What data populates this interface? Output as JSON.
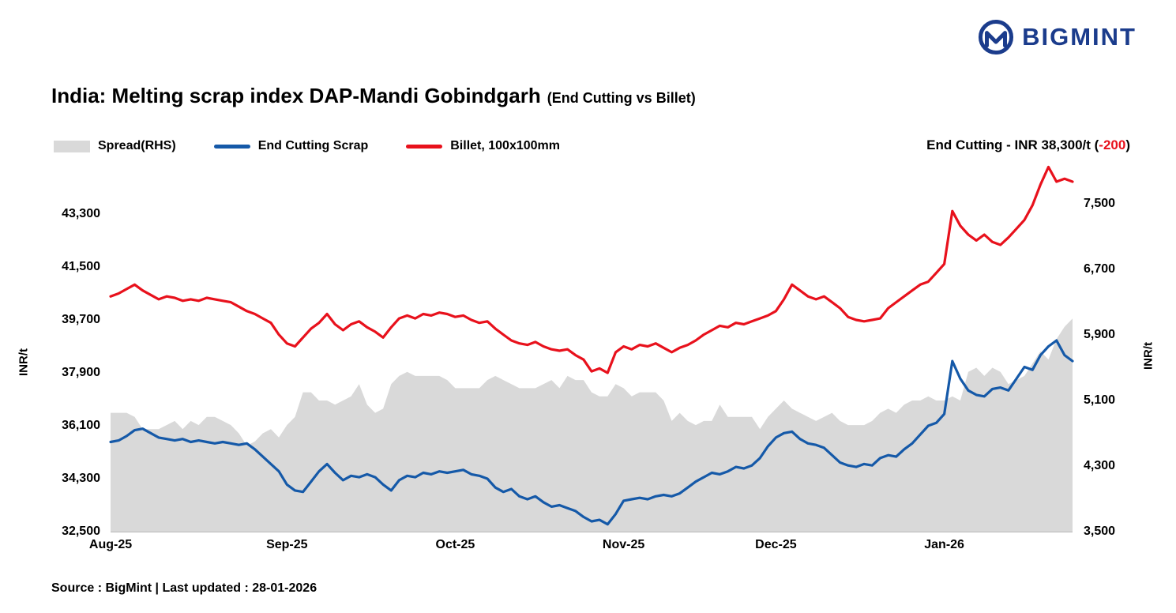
{
  "logo": {
    "text": "BIGMINT",
    "color": "#1b3c8c"
  },
  "title": {
    "main": "India: Melting scrap index DAP-Mandi Gobindgarh",
    "sub": "(End Cutting vs Billet)"
  },
  "legend": [
    {
      "label": "Spread(RHS)",
      "type": "area",
      "color": "#d9d9d9"
    },
    {
      "label": "End Cutting Scrap",
      "type": "line",
      "color": "#1559a8"
    },
    {
      "label": "Billet, 100x100mm",
      "type": "line",
      "color": "#e8111c"
    }
  ],
  "annotation": {
    "prefix": "End Cutting - INR 38,300/t (",
    "change": "-200",
    "suffix": ")",
    "change_color": "#e8111c"
  },
  "source": "Source : BigMint | Last updated : 28-01-2026",
  "chart_data": {
    "type": "line+area",
    "title": "India: Melting scrap index DAP-Mandi Gobindgarh (End Cutting vs Billet)",
    "grid": false,
    "legend_position": "top-left",
    "x_tick_labels": [
      "Aug-25",
      "Sep-25",
      "Oct-25",
      "Nov-25",
      "Dec-25",
      "Jan-26"
    ],
    "x_tick_indices": [
      0,
      22,
      43,
      64,
      83,
      104
    ],
    "left_axis": {
      "label": "INR/t",
      "min": 32500,
      "max": 45125,
      "ticks": [
        32500,
        34300,
        36100,
        37900,
        39700,
        41500,
        43300
      ]
    },
    "right_axis": {
      "label": "INR/t",
      "min": 3500,
      "max": 8030,
      "ticks": [
        3500,
        4300,
        5100,
        5900,
        6700,
        7500
      ]
    },
    "series": [
      {
        "name": "Spread(RHS)",
        "data_name": "spread-area",
        "type": "area",
        "axis": "right",
        "color": "#d9d9d9",
        "values": [
          4950,
          4950,
          4950,
          4900,
          4750,
          4750,
          4750,
          4800,
          4850,
          4750,
          4850,
          4800,
          4900,
          4900,
          4850,
          4800,
          4700,
          4550,
          4600,
          4700,
          4750,
          4650,
          4800,
          4900,
          5200,
          5200,
          5100,
          5100,
          5050,
          5100,
          5150,
          5300,
          5050,
          4950,
          5000,
          5300,
          5400,
          5450,
          5400,
          5400,
          5400,
          5400,
          5350,
          5250,
          5250,
          5250,
          5250,
          5350,
          5400,
          5350,
          5300,
          5250,
          5250,
          5250,
          5300,
          5350,
          5250,
          5400,
          5350,
          5350,
          5200,
          5150,
          5150,
          5300,
          5250,
          5150,
          5200,
          5200,
          5200,
          5100,
          4850,
          4950,
          4850,
          4800,
          4850,
          4850,
          5050,
          4900,
          4900,
          4900,
          4900,
          4750,
          4900,
          5000,
          5100,
          5000,
          4950,
          4900,
          4850,
          4900,
          4950,
          4850,
          4800,
          4800,
          4800,
          4850,
          4950,
          5000,
          4950,
          5050,
          5100,
          5100,
          5150,
          5100,
          5100,
          5150,
          5100,
          5450,
          5500,
          5400,
          5500,
          5450,
          5300,
          5350,
          5400,
          5550,
          5700,
          5600,
          5850,
          6000,
          6100
        ]
      },
      {
        "name": "End Cutting Scrap",
        "data_name": "end-cutting-line",
        "type": "line",
        "axis": "left",
        "color": "#1559a8",
        "values": [
          35550,
          35600,
          35750,
          35950,
          36000,
          35850,
          35700,
          35650,
          35600,
          35650,
          35550,
          35600,
          35550,
          35500,
          35550,
          35500,
          35450,
          35500,
          35300,
          35050,
          34800,
          34550,
          34100,
          33900,
          33850,
          34200,
          34550,
          34800,
          34500,
          34250,
          34400,
          34350,
          34450,
          34350,
          34100,
          33900,
          34250,
          34400,
          34350,
          34500,
          34450,
          34550,
          34500,
          34550,
          34600,
          34450,
          34400,
          34300,
          34000,
          33850,
          33950,
          33700,
          33600,
          33700,
          33500,
          33350,
          33400,
          33300,
          33200,
          33000,
          32850,
          32900,
          32750,
          33100,
          33550,
          33600,
          33650,
          33600,
          33700,
          33750,
          33700,
          33800,
          34000,
          34200,
          34350,
          34500,
          34450,
          34550,
          34700,
          34650,
          34750,
          35000,
          35400,
          35700,
          35850,
          35900,
          35650,
          35500,
          35450,
          35350,
          35100,
          34850,
          34750,
          34700,
          34800,
          34750,
          35000,
          35100,
          35050,
          35300,
          35500,
          35800,
          36100,
          36200,
          36500,
          38300,
          37700,
          37300,
          37150,
          37100,
          37350,
          37400,
          37300,
          37700,
          38100,
          38000,
          38500,
          38800,
          39000,
          38500,
          38300
        ]
      },
      {
        "name": "Billet, 100x100mm",
        "data_name": "billet-line",
        "type": "line",
        "axis": "left",
        "color": "#e8111c",
        "values": [
          40500,
          40600,
          40750,
          40900,
          40700,
          40550,
          40400,
          40500,
          40450,
          40350,
          40400,
          40350,
          40450,
          40400,
          40350,
          40300,
          40150,
          40000,
          39900,
          39750,
          39600,
          39200,
          38900,
          38800,
          39100,
          39400,
          39600,
          39900,
          39550,
          39350,
          39550,
          39650,
          39450,
          39300,
          39100,
          39450,
          39750,
          39850,
          39750,
          39900,
          39850,
          39950,
          39900,
          39800,
          39850,
          39700,
          39600,
          39650,
          39400,
          39200,
          39000,
          38900,
          38850,
          38950,
          38800,
          38700,
          38650,
          38700,
          38500,
          38350,
          37950,
          38050,
          37900,
          38600,
          38800,
          38700,
          38850,
          38800,
          38900,
          38750,
          38600,
          38750,
          38850,
          39000,
          39200,
          39350,
          39500,
          39450,
          39600,
          39550,
          39650,
          39750,
          39850,
          40000,
          40400,
          40900,
          40700,
          40500,
          40400,
          40500,
          40300,
          40100,
          39800,
          39700,
          39650,
          39700,
          39750,
          40100,
          40300,
          40500,
          40700,
          40900,
          41000,
          41300,
          41600,
          43400,
          42900,
          42600,
          42400,
          42600,
          42350,
          42250,
          42500,
          42800,
          43100,
          43600,
          44300,
          44900,
          44400,
          44500,
          44400
        ]
      }
    ],
    "last_values": {
      "end_cutting": 38300,
      "end_cutting_change": -200
    }
  }
}
